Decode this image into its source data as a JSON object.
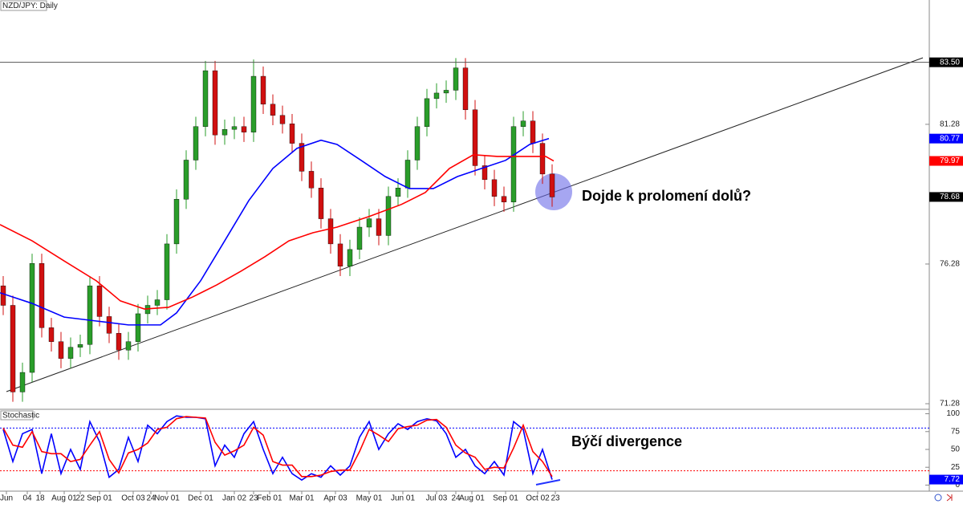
{
  "chart_data": [
    {
      "type": "candlestick",
      "title": "NZD/JPY: Daily",
      "annotation": "Dojde k prolomení dolů?",
      "up_color": "#2a9d2a",
      "down_color": "#d01010",
      "xlim": [
        0,
        579
      ],
      "xticks": [
        {
          "value": 4,
          "label": "Jun"
        },
        {
          "value": 17,
          "label": "04"
        },
        {
          "value": 25,
          "label": "18"
        },
        {
          "value": 40,
          "label": "Aug 01"
        },
        {
          "value": 50,
          "label": "22"
        },
        {
          "value": 62,
          "label": "Sep 01"
        },
        {
          "value": 83,
          "label": "Oct 03"
        },
        {
          "value": 94,
          "label": "24"
        },
        {
          "value": 104,
          "label": "Nov 01"
        },
        {
          "value": 125,
          "label": "Dec 01"
        },
        {
          "value": 146,
          "label": "Jan 02"
        },
        {
          "value": 158,
          "label": "23"
        },
        {
          "value": 168,
          "label": "Feb 01"
        },
        {
          "value": 188,
          "label": "Mar 01"
        },
        {
          "value": 209,
          "label": "Apr 03"
        },
        {
          "value": 230,
          "label": "May 01"
        },
        {
          "value": 251,
          "label": "Jun 01"
        },
        {
          "value": 272,
          "label": "Jul 03"
        },
        {
          "value": 284,
          "label": "24"
        },
        {
          "value": 294,
          "label": "Aug 01"
        },
        {
          "value": 315,
          "label": "Sep 01"
        },
        {
          "value": 335,
          "label": "Oct 02"
        },
        {
          "value": 346,
          "label": "23"
        }
      ],
      "ylim": [
        71.08,
        85.73
      ],
      "yticks": [
        71.28,
        76.28,
        81.28
      ],
      "price_labels": [
        {
          "value": 83.5,
          "label": "83.50",
          "color": "#000000"
        },
        {
          "value": 80.77,
          "color": "#0000ff"
        },
        {
          "value": 79.97,
          "color": "#ff0000"
        },
        {
          "value": 78.68,
          "color": "#000000"
        }
      ],
      "x": [
        2,
        8,
        14,
        20,
        26,
        32,
        38,
        44,
        50,
        56,
        62,
        68,
        74,
        80,
        86,
        92,
        98,
        104,
        110,
        116,
        122,
        128,
        134,
        140,
        146,
        152,
        158,
        164,
        170,
        176,
        182,
        188,
        194,
        200,
        206,
        212,
        218,
        224,
        230,
        236,
        242,
        248,
        254,
        260,
        266,
        272,
        278,
        284,
        290,
        296,
        302,
        308,
        314,
        320,
        326,
        332,
        338,
        344
      ],
      "open": [
        75.5,
        74.8,
        71.7,
        72.4,
        76.3,
        74.0,
        73.5,
        72.9,
        73.3,
        73.4,
        75.5,
        74.4,
        73.8,
        73.2,
        73.5,
        74.5,
        74.8,
        75.0,
        77.0,
        78.6,
        80.0,
        81.2,
        83.2,
        80.9,
        81.1,
        81.2,
        81.0,
        83.0,
        82.0,
        81.6,
        81.3,
        80.6,
        79.6,
        79.0,
        77.9,
        77.0,
        76.2,
        76.8,
        77.6,
        77.9,
        77.3,
        78.7,
        79.0,
        80.0,
        81.2,
        82.2,
        82.4,
        82.5,
        83.3,
        81.8,
        79.8,
        79.3,
        78.7,
        78.5,
        81.2,
        81.4,
        80.6,
        79.5
      ],
      "high": [
        75.85,
        75.15,
        72.75,
        76.65,
        76.65,
        74.35,
        73.85,
        73.65,
        73.75,
        75.85,
        75.85,
        74.75,
        74.15,
        73.85,
        74.85,
        75.15,
        75.35,
        77.35,
        78.95,
        80.35,
        81.55,
        83.55,
        83.55,
        81.45,
        81.55,
        81.55,
        83.6,
        83.35,
        82.35,
        81.95,
        81.65,
        80.95,
        79.95,
        79.35,
        78.25,
        77.35,
        77.15,
        77.95,
        78.25,
        78.25,
        79.05,
        79.35,
        80.35,
        81.55,
        82.55,
        82.75,
        82.85,
        83.65,
        83.65,
        82.15,
        80.15,
        79.65,
        79.05,
        81.55,
        81.75,
        81.75,
        80.95,
        79.85
      ],
      "low": [
        74.45,
        71.35,
        71.35,
        72.05,
        73.65,
        73.15,
        72.55,
        72.55,
        72.95,
        73.05,
        74.05,
        73.45,
        72.85,
        72.85,
        73.15,
        74.15,
        74.45,
        74.65,
        76.65,
        78.25,
        79.65,
        80.85,
        80.55,
        80.55,
        80.75,
        80.65,
        80.65,
        81.65,
        81.25,
        80.95,
        80.25,
        79.25,
        78.65,
        77.55,
        76.65,
        75.85,
        75.85,
        76.45,
        77.25,
        76.95,
        76.95,
        78.35,
        78.65,
        79.65,
        80.85,
        81.85,
        82.05,
        82.15,
        81.45,
        79.45,
        78.95,
        78.35,
        78.15,
        78.15,
        80.85,
        80.25,
        79.15,
        78.33
      ],
      "close": [
        74.8,
        71.7,
        72.4,
        76.3,
        74.0,
        73.5,
        72.9,
        73.3,
        73.4,
        75.5,
        74.4,
        73.8,
        73.2,
        73.5,
        74.5,
        74.8,
        75.0,
        77.0,
        78.6,
        80.0,
        81.2,
        83.2,
        80.9,
        81.1,
        81.2,
        81.0,
        83.0,
        82.0,
        81.6,
        81.3,
        80.6,
        79.6,
        79.0,
        77.9,
        77.0,
        76.2,
        76.8,
        77.6,
        77.9,
        77.3,
        78.7,
        79.0,
        80.0,
        81.2,
        82.2,
        82.4,
        82.5,
        83.3,
        81.8,
        79.8,
        79.3,
        78.7,
        78.5,
        81.2,
        81.4,
        80.6,
        79.5,
        78.68
      ],
      "lines": [
        {
          "color": "#0000ff",
          "x": [
            0,
            20,
            40,
            60,
            80,
            100,
            110,
            125,
            140,
            155,
            170,
            185,
            200,
            210,
            225,
            240,
            255,
            270,
            285,
            300,
            315,
            330,
            342
          ],
          "values": [
            75.25,
            74.87,
            74.38,
            74.24,
            74.1,
            74.1,
            74.53,
            75.68,
            77.11,
            78.55,
            79.7,
            80.42,
            80.71,
            80.56,
            79.99,
            79.41,
            78.98,
            78.98,
            79.41,
            79.7,
            79.99,
            80.56,
            80.77
          ]
        },
        {
          "color": "#ff0000",
          "x": [
            0,
            20,
            40,
            60,
            75,
            90,
            105,
            120,
            135,
            150,
            165,
            180,
            195,
            210,
            230,
            250,
            265,
            280,
            295,
            310,
            325,
            340,
            345
          ],
          "values": [
            77.69,
            77.11,
            76.39,
            75.68,
            74.96,
            74.67,
            74.73,
            75.1,
            75.53,
            76.02,
            76.54,
            77.11,
            77.4,
            77.6,
            77.98,
            78.41,
            78.84,
            79.7,
            80.19,
            80.13,
            80.13,
            80.13,
            79.97
          ]
        }
      ]
    },
    {
      "type": "line",
      "title": "Stochastic",
      "annotation": "Býčí divergence",
      "ylim": [
        -4,
        104
      ],
      "yticks": [
        0,
        25,
        50,
        75,
        100
      ],
      "levels": [
        {
          "value": 80,
          "color": "#0000ff"
        },
        {
          "value": 20,
          "color": "#ff0000"
        }
      ],
      "price_labels": [
        {
          "value": 7.72,
          "color": "#0000ff"
        }
      ],
      "x": [
        2,
        8,
        14,
        20,
        26,
        32,
        38,
        44,
        50,
        56,
        62,
        68,
        74,
        80,
        86,
        92,
        98,
        104,
        110,
        116,
        122,
        128,
        134,
        140,
        146,
        152,
        158,
        164,
        170,
        176,
        182,
        188,
        194,
        200,
        206,
        212,
        218,
        224,
        230,
        236,
        242,
        248,
        254,
        260,
        266,
        272,
        278,
        284,
        290,
        296,
        302,
        308,
        314,
        320,
        326,
        332,
        338,
        344
      ],
      "series": [
        {
          "color": "#0000ff",
          "values": [
            78,
            33,
            72,
            78,
            16,
            72,
            16,
            50,
            22,
            89,
            61,
            11,
            22,
            67,
            33,
            84,
            72,
            89,
            97,
            95,
            95,
            93,
            27,
            56,
            39,
            72,
            89,
            50,
            16,
            39,
            16,
            7,
            16,
            11,
            27,
            14,
            27,
            67,
            89,
            50,
            72,
            86,
            78,
            89,
            93,
            90,
            72,
            39,
            50,
            27,
            16,
            33,
            14,
            89,
            78,
            16,
            50,
            7.72
          ]
        },
        {
          "color": "#ff0000",
          "values": [
            80,
            56,
            53,
            75,
            47,
            44,
            44,
            33,
            36,
            56,
            75,
            36,
            17,
            45,
            50,
            59,
            78,
            81,
            93,
            96,
            95,
            94,
            60,
            42,
            48,
            56,
            81,
            70,
            33,
            28,
            28,
            12,
            12,
            14,
            19,
            21,
            21,
            47,
            78,
            70,
            61,
            79,
            82,
            84,
            91,
            92,
            81,
            56,
            45,
            39,
            22,
            25,
            24,
            52,
            84,
            47,
            33,
            12
          ]
        }
      ]
    }
  ]
}
